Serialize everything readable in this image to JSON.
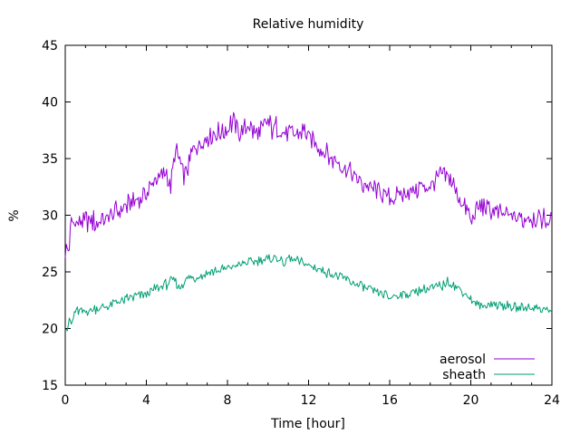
{
  "chart_data": {
    "type": "line",
    "title": "Relative humidity",
    "xlabel": "Time [hour]",
    "ylabel": "%",
    "xlim": [
      0,
      24
    ],
    "ylim": [
      15,
      45
    ],
    "x_ticks": [
      0,
      4,
      8,
      12,
      16,
      20,
      24
    ],
    "y_ticks": [
      15,
      20,
      25,
      30,
      35,
      40,
      45
    ],
    "x_tick_labels": [
      "0",
      "4",
      "8",
      "12",
      "16",
      "20",
      "24"
    ],
    "y_tick_labels": [
      "15",
      "20",
      "25",
      "30",
      "35",
      "40",
      "45"
    ],
    "grid": false,
    "legend_position": "bottom-right",
    "series": [
      {
        "name": "aerosol",
        "color": "#9400d3",
        "x": [
          0,
          0.1,
          0.2,
          0.3,
          0.5,
          1.0,
          1.5,
          2.0,
          2.5,
          3.0,
          3.5,
          4.0,
          4.5,
          5.0,
          5.2,
          5.4,
          5.6,
          5.8,
          6.0,
          6.2,
          6.5,
          7.0,
          7.5,
          8.0,
          8.3,
          8.6,
          9.0,
          9.3,
          9.6,
          9.9,
          10.2,
          10.5,
          10.8,
          11.1,
          11.4,
          11.7,
          12.0,
          12.4,
          12.8,
          13.2,
          13.6,
          14.0,
          14.5,
          15.0,
          15.5,
          16.0,
          16.5,
          17.0,
          17.5,
          18.0,
          18.5,
          19.0,
          19.3,
          19.6,
          19.9,
          20.0,
          20.2,
          20.5,
          21.0,
          21.5,
          22.0,
          22.5,
          23.0,
          23.5,
          24.0
        ],
        "values": [
          27.0,
          26.8,
          27.2,
          29.3,
          29.4,
          29.5,
          29.4,
          29.7,
          30.3,
          30.8,
          31.2,
          32.0,
          33.2,
          33.6,
          32.5,
          35.6,
          35.0,
          33.5,
          34.0,
          35.2,
          36.2,
          37.0,
          37.2,
          37.6,
          38.4,
          37.3,
          37.9,
          37.4,
          37.1,
          38.3,
          37.6,
          37.8,
          37.5,
          37.3,
          37.1,
          37.6,
          37.0,
          36.2,
          35.5,
          34.9,
          34.3,
          33.9,
          32.9,
          32.5,
          32.0,
          31.4,
          31.8,
          32.2,
          32.4,
          32.7,
          33.5,
          33.3,
          32.0,
          31.0,
          30.0,
          29.4,
          30.5,
          30.8,
          30.4,
          30.0,
          29.9,
          29.6,
          29.9,
          29.8,
          29.6
        ]
      },
      {
        "name": "sheath",
        "color": "#009e73",
        "x": [
          0,
          0.1,
          0.2,
          0.3,
          0.5,
          1.0,
          1.5,
          2.0,
          2.5,
          3.0,
          3.5,
          4.0,
          4.5,
          5.0,
          5.3,
          5.6,
          6.0,
          6.5,
          7.0,
          7.5,
          8.0,
          8.5,
          9.0,
          9.5,
          10.0,
          10.3,
          10.6,
          10.8,
          11.0,
          11.5,
          12.0,
          12.5,
          13.0,
          13.5,
          14.0,
          14.5,
          15.0,
          15.5,
          16.0,
          16.5,
          17.0,
          17.5,
          18.0,
          18.5,
          19.0,
          19.3,
          19.6,
          20.0,
          20.2,
          20.5,
          21.0,
          21.5,
          22.0,
          22.5,
          23.0,
          23.5,
          23.8,
          24.0
        ],
        "values": [
          20.2,
          20.0,
          20.6,
          20.4,
          21.6,
          21.5,
          21.7,
          21.9,
          22.3,
          22.6,
          22.8,
          23.1,
          23.5,
          23.9,
          24.4,
          23.6,
          24.3,
          24.6,
          24.9,
          25.1,
          25.3,
          25.6,
          25.8,
          26.0,
          26.1,
          26.3,
          26.0,
          25.8,
          26.2,
          25.9,
          25.6,
          25.2,
          24.9,
          24.6,
          24.2,
          23.8,
          23.4,
          23.1,
          22.8,
          23.0,
          23.1,
          23.3,
          23.5,
          23.7,
          24.2,
          23.6,
          23.3,
          22.6,
          22.2,
          21.9,
          22.2,
          22.0,
          21.9,
          21.8,
          21.9,
          21.8,
          21.6,
          21.4
        ]
      }
    ]
  }
}
